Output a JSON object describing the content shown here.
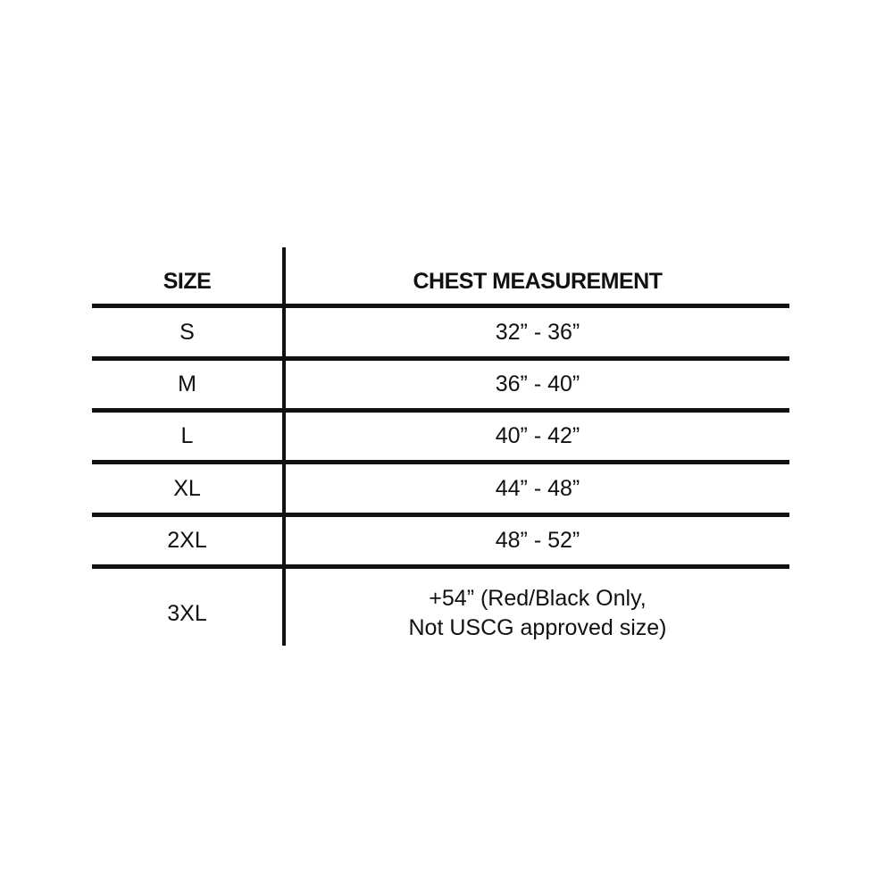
{
  "table": {
    "headers": [
      "SIZE",
      "CHEST MEASUREMENT"
    ],
    "rows": [
      {
        "size": "S",
        "chest": "32” - 36”"
      },
      {
        "size": "M",
        "chest": "36” - 40”"
      },
      {
        "size": "L",
        "chest": "40” - 42”"
      },
      {
        "size": "XL",
        "chest": "44” - 48”"
      },
      {
        "size": "2XL",
        "chest": "48” - 52”"
      },
      {
        "size": "3XL",
        "chest": "+54” (Red/Black Only,\nNot USCG approved size)"
      }
    ]
  }
}
